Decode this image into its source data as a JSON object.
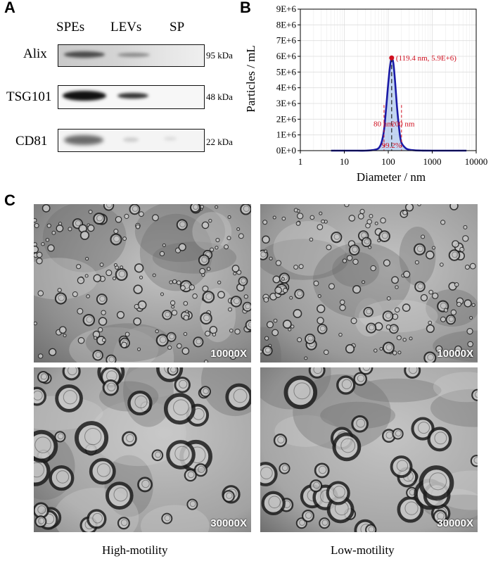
{
  "panels": {
    "A": "A",
    "B": "B",
    "C": "C"
  },
  "western_blot": {
    "lanes": [
      "SPEs",
      "LEVs",
      "SP"
    ],
    "rows": [
      {
        "protein": "Alix",
        "kda": "95 kDa"
      },
      {
        "protein": "TSG101",
        "kda": "48 kDa"
      },
      {
        "protein": "CD81",
        "kda": "22 kDa"
      }
    ]
  },
  "chart_data": {
    "type": "line",
    "xlabel": "Diameter / nm",
    "ylabel": "Particles / mL",
    "xscale": "log",
    "xlim": [
      1,
      10000
    ],
    "ylim": [
      0,
      9000000
    ],
    "x_ticks": [
      "1",
      "10",
      "100",
      "1000",
      "10000"
    ],
    "y_ticks": [
      "0E+0",
      "1E+6",
      "2E+6",
      "3E+6",
      "4E+6",
      "5E+6",
      "6E+6",
      "7E+6",
      "8E+6",
      "9E+6"
    ],
    "grid": true,
    "series": [
      {
        "x": [
          5,
          10,
          20,
          30,
          40,
          50,
          60,
          70,
          80,
          90,
          100,
          110,
          119.4,
          130,
          140,
          150,
          160,
          180,
          200,
          250,
          300,
          400,
          600,
          1000,
          2000,
          6000
        ],
        "y": [
          0,
          0,
          0,
          0,
          20000,
          60000,
          150000,
          500000,
          1300000,
          2800000,
          4300000,
          5400000,
          5900000,
          5600000,
          4700000,
          3600000,
          2600000,
          1200000,
          500000,
          150000,
          60000,
          20000,
          5000,
          0,
          0,
          0
        ]
      }
    ],
    "annotations": {
      "peak": "(119.4 nm, 5.9E+6)",
      "lower": "80 nm",
      "upper": "200 nm",
      "percent": "99.2%"
    },
    "peak_point": {
      "x": 119.4,
      "y": 5900000
    },
    "range": {
      "lower": 80,
      "upper": 200
    },
    "colors": {
      "line": "#1a1aa6",
      "fill": "#a9c4ec",
      "annotation": "#d01020",
      "grid": "#dddddd"
    }
  },
  "tem": {
    "images": [
      {
        "magnification": "10000X"
      },
      {
        "magnification": "10000X"
      },
      {
        "magnification": "30000X"
      },
      {
        "magnification": "30000X"
      }
    ],
    "conditions": [
      "High-motility",
      "Low-motility"
    ]
  }
}
